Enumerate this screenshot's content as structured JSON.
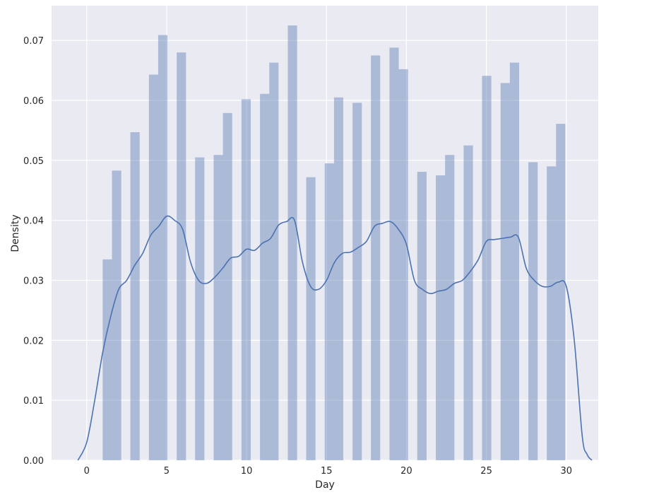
{
  "chart_data": {
    "type": "bar",
    "subtype": "histogram with KDE",
    "title": "",
    "xlabel": "Day",
    "ylabel": "Density",
    "xlim": [
      -2.2,
      32.0
    ],
    "ylim": [
      0,
      0.0758
    ],
    "grid": true,
    "colors": {
      "background": "#eaeaf2",
      "grid": "#ffffff",
      "bar": "#4c72b0",
      "kde": "#4c72b0"
    },
    "x_ticks": [
      0,
      5,
      10,
      15,
      20,
      25,
      30
    ],
    "x_tick_labels": [
      "0",
      "5",
      "10",
      "15",
      "20",
      "25",
      "30"
    ],
    "y_ticks": [
      0.0,
      0.01,
      0.02,
      0.03,
      0.04,
      0.05,
      0.06,
      0.07
    ],
    "y_tick_labels": [
      "0.00",
      "0.01",
      "0.02",
      "0.03",
      "0.04",
      "0.05",
      "0.06",
      "0.07"
    ],
    "bars": [
      {
        "x_start": 1.0,
        "x_end": 1.58,
        "value": 0.0335
      },
      {
        "x_start": 1.58,
        "x_end": 2.16,
        "value": 0.0483
      },
      {
        "x_start": 2.73,
        "x_end": 3.31,
        "value": 0.0547
      },
      {
        "x_start": 3.89,
        "x_end": 4.47,
        "value": 0.0643
      },
      {
        "x_start": 4.47,
        "x_end": 5.05,
        "value": 0.0709
      },
      {
        "x_start": 5.63,
        "x_end": 6.21,
        "value": 0.068
      },
      {
        "x_start": 6.78,
        "x_end": 7.36,
        "value": 0.0505
      },
      {
        "x_start": 7.94,
        "x_end": 8.52,
        "value": 0.0509
      },
      {
        "x_start": 8.52,
        "x_end": 9.1,
        "value": 0.0579
      },
      {
        "x_start": 9.68,
        "x_end": 10.26,
        "value": 0.0602
      },
      {
        "x_start": 10.84,
        "x_end": 11.42,
        "value": 0.0611
      },
      {
        "x_start": 11.42,
        "x_end": 12.0,
        "value": 0.0663
      },
      {
        "x_start": 12.58,
        "x_end": 13.16,
        "value": 0.0725
      },
      {
        "x_start": 13.73,
        "x_end": 14.31,
        "value": 0.0472
      },
      {
        "x_start": 14.89,
        "x_end": 15.47,
        "value": 0.0495
      },
      {
        "x_start": 15.47,
        "x_end": 16.05,
        "value": 0.0605
      },
      {
        "x_start": 16.63,
        "x_end": 17.21,
        "value": 0.0596
      },
      {
        "x_start": 17.78,
        "x_end": 18.36,
        "value": 0.0675
      },
      {
        "x_start": 18.94,
        "x_end": 19.52,
        "value": 0.0688
      },
      {
        "x_start": 19.52,
        "x_end": 20.1,
        "value": 0.0652
      },
      {
        "x_start": 20.68,
        "x_end": 21.26,
        "value": 0.0481
      },
      {
        "x_start": 21.84,
        "x_end": 22.42,
        "value": 0.0475
      },
      {
        "x_start": 22.42,
        "x_end": 23.0,
        "value": 0.0509
      },
      {
        "x_start": 23.58,
        "x_end": 24.16,
        "value": 0.0525
      },
      {
        "x_start": 24.73,
        "x_end": 25.31,
        "value": 0.0641
      },
      {
        "x_start": 25.89,
        "x_end": 26.47,
        "value": 0.0629
      },
      {
        "x_start": 26.47,
        "x_end": 27.05,
        "value": 0.0663
      },
      {
        "x_start": 27.63,
        "x_end": 28.21,
        "value": 0.0497
      },
      {
        "x_start": 28.78,
        "x_end": 29.36,
        "value": 0.049
      },
      {
        "x_start": 29.36,
        "x_end": 29.94,
        "value": 0.0561
      }
    ],
    "kde": {
      "x": [
        -0.55,
        0.0,
        0.5,
        1.0,
        1.5,
        2.0,
        2.5,
        3.0,
        3.5,
        4.0,
        4.5,
        5.0,
        5.5,
        6.0,
        6.5,
        7.0,
        7.5,
        8.0,
        8.5,
        9.0,
        9.5,
        10.0,
        10.5,
        11.0,
        11.5,
        12.0,
        12.5,
        13.0,
        13.5,
        14.0,
        14.5,
        15.0,
        15.5,
        16.0,
        16.5,
        17.0,
        17.5,
        18.0,
        18.5,
        19.0,
        19.5,
        20.0,
        20.5,
        21.0,
        21.5,
        22.0,
        22.5,
        23.0,
        23.5,
        24.0,
        24.5,
        25.0,
        25.5,
        26.0,
        26.5,
        27.0,
        27.5,
        28.0,
        28.5,
        29.0,
        29.5,
        30.0,
        30.5,
        31.0,
        31.3,
        31.6
      ],
      "y": [
        0.0,
        0.003,
        0.01,
        0.018,
        0.024,
        0.0285,
        0.03,
        0.0325,
        0.0345,
        0.0375,
        0.039,
        0.0407,
        0.04,
        0.0385,
        0.033,
        0.03,
        0.0295,
        0.0305,
        0.032,
        0.0337,
        0.034,
        0.0352,
        0.035,
        0.0362,
        0.037,
        0.0392,
        0.0398,
        0.04,
        0.033,
        0.029,
        0.0285,
        0.03,
        0.033,
        0.0345,
        0.0347,
        0.0355,
        0.0365,
        0.039,
        0.0395,
        0.0398,
        0.0385,
        0.036,
        0.03,
        0.0285,
        0.0278,
        0.0282,
        0.0285,
        0.0295,
        0.03,
        0.0315,
        0.0335,
        0.0365,
        0.0368,
        0.037,
        0.0372,
        0.0372,
        0.032,
        0.03,
        0.029,
        0.029,
        0.0297,
        0.029,
        0.02,
        0.004,
        0.001,
        0.0
      ]
    }
  }
}
